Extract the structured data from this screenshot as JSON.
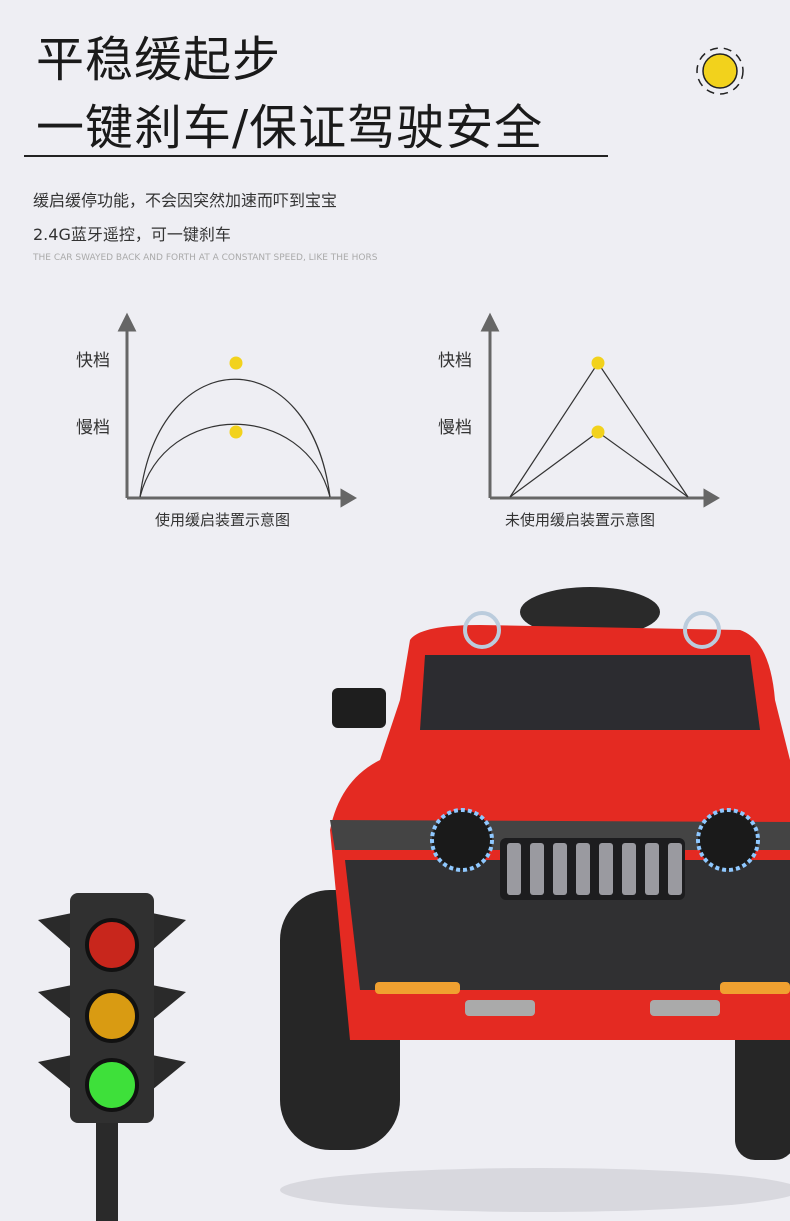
{
  "heading": {
    "line1": "平稳缓起步",
    "line2": "一键刹车/保证驾驶安全"
  },
  "description": {
    "line1": "缓启缓停功能，不会因突然加速而吓到宝宝",
    "line2": "2.4G蓝牙遥控，可一键刹车",
    "english": "THE CAR SWAYED BACK AND FORTH AT A CONSTANT SPEED, LIKE THE HORS"
  },
  "diagrams": [
    {
      "fast_label": "快档",
      "slow_label": "慢档",
      "caption": "使用缓启装置示意图",
      "shape": "arch"
    },
    {
      "fast_label": "快档",
      "slow_label": "慢档",
      "caption": "未使用缓启装置示意图",
      "shape": "triangle"
    }
  ],
  "colors": {
    "background": "#eeeef3",
    "accent_dot": "#f2d21c",
    "car": "#e42a22",
    "light_red": "#c8261c",
    "light_amber": "#d99b12",
    "light_green": "#3ee03a"
  },
  "icons": {
    "top_right": "sun-icon"
  }
}
